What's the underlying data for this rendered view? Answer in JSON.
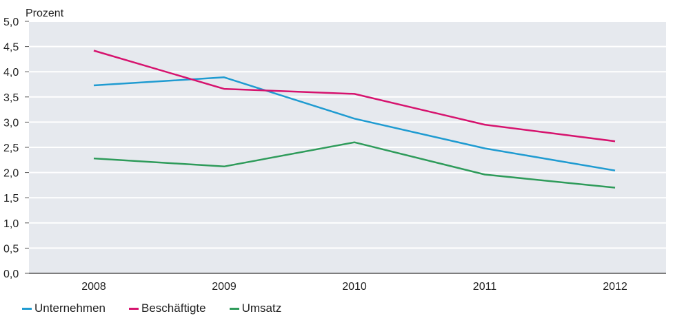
{
  "chart_data": {
    "type": "line",
    "unit_label": "Prozent",
    "categories": [
      "2008",
      "2009",
      "2010",
      "2011",
      "2012"
    ],
    "y_ticks": [
      "0,0",
      "0,5",
      "1,0",
      "1,5",
      "2,0",
      "2,5",
      "3,0",
      "3,5",
      "4,0",
      "4,5",
      "5,0"
    ],
    "ylim": [
      0,
      5
    ],
    "grid": true,
    "legend_position": "bottom-left",
    "background_color": "#e6e9ee",
    "series": [
      {
        "name": "Unternehmen",
        "color": "#1f9bd1",
        "values": [
          3.73,
          3.89,
          3.07,
          2.48,
          2.04
        ]
      },
      {
        "name": "Beschäftigte",
        "color": "#d6136e",
        "values": [
          4.42,
          3.66,
          3.56,
          2.95,
          2.62
        ]
      },
      {
        "name": "Umsatz",
        "color": "#2e9b5a",
        "values": [
          2.28,
          2.12,
          2.6,
          1.96,
          1.7
        ]
      }
    ]
  }
}
